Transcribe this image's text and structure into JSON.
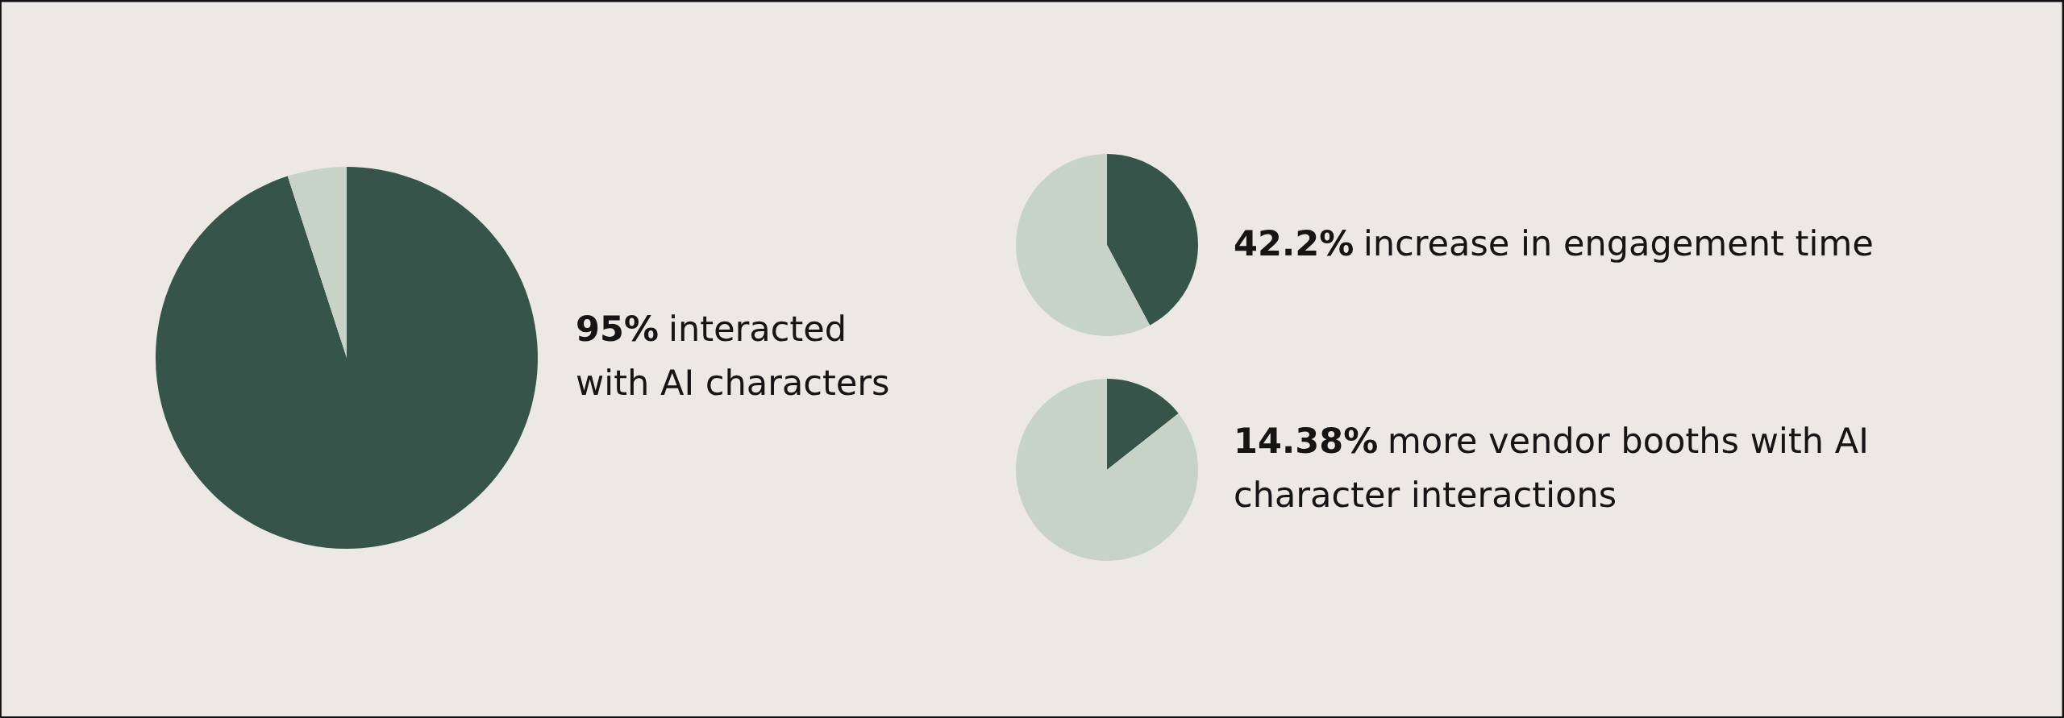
{
  "chart_data": [
    {
      "type": "pie",
      "categories": [
        null,
        null
      ],
      "values": [
        95,
        5
      ],
      "colors": [
        "#36544a",
        "#c8d3c8"
      ],
      "annotations": [
        "95%",
        "interacted\nwith AI characters"
      ]
    },
    {
      "type": "pie",
      "categories": [
        null,
        null
      ],
      "values": [
        42.2,
        57.8
      ],
      "colors": [
        "#36544a",
        "#c8d3c8"
      ],
      "annotations": [
        "42.2%",
        "increase in engagement time"
      ]
    },
    {
      "type": "pie",
      "categories": [
        null,
        null
      ],
      "values": [
        14.38,
        85.62
      ],
      "colors": [
        "#36544a",
        "#c8d3c8"
      ],
      "annotations": [
        "14.38%",
        "more vendor booths with AI\ncharacter interactions"
      ]
    }
  ]
}
